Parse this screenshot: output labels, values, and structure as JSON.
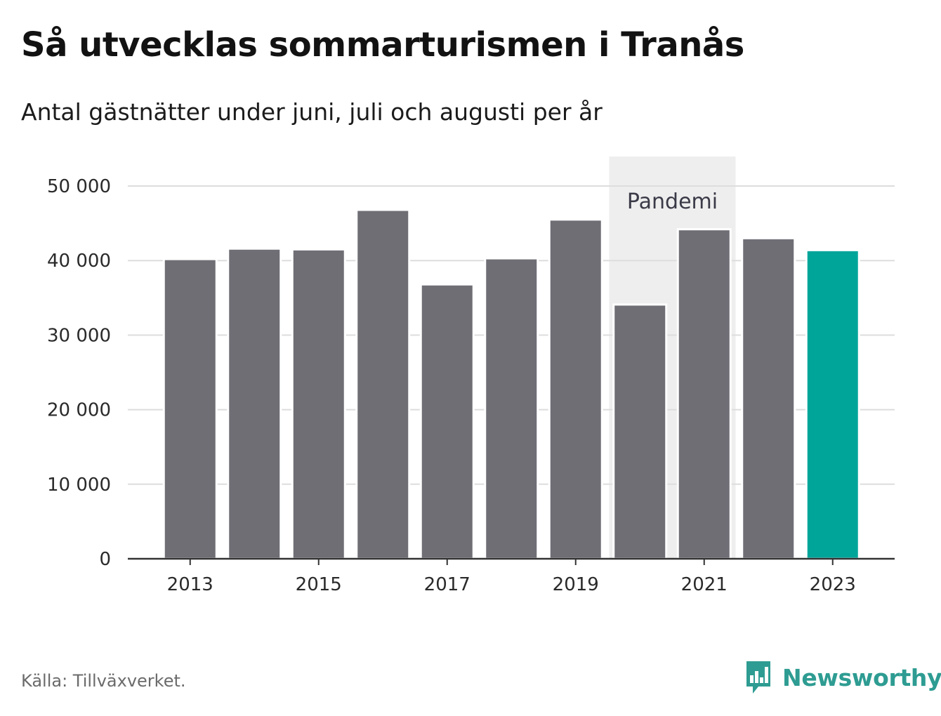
{
  "header": {
    "title": "Så utvecklas sommarturismen i Tranås",
    "subtitle": "Antal gästnätter under juni, juli och augusti per år"
  },
  "footer": {
    "source": "Källa: Tillväxverket.",
    "brand": "Newsworthy",
    "brand_icon": "newsworthy-logo-icon"
  },
  "colors": {
    "bar_default": "#6f6e75",
    "bar_highlight": "#00a59a",
    "band_fill": "#eeeeee",
    "gridline": "#dddddd",
    "axis": "#333333",
    "brand": "#2e9c92"
  },
  "chart_data": {
    "type": "bar",
    "title": "Så utvecklas sommarturismen i Tranås",
    "subtitle": "Antal gästnätter under juni, juli och augusti per år",
    "xlabel": "",
    "ylabel": "",
    "categories": [
      2013,
      2014,
      2015,
      2016,
      2017,
      2018,
      2019,
      2020,
      2021,
      2022,
      2023
    ],
    "values": [
      40200,
      41600,
      41500,
      46800,
      36800,
      40300,
      45500,
      34100,
      44200,
      43000,
      41400
    ],
    "highlight": [
      2023
    ],
    "ylim": [
      0,
      50000
    ],
    "yticks": [
      0,
      10000,
      20000,
      30000,
      40000,
      50000
    ],
    "ytick_labels": [
      "0",
      "10 000",
      "20 000",
      "30 000",
      "40 000",
      "50 000"
    ],
    "xticks": [
      2013,
      2015,
      2017,
      2019,
      2021,
      2023
    ],
    "xtick_labels": [
      "2013",
      "2015",
      "2017",
      "2019",
      "2021",
      "2023"
    ],
    "grid": true,
    "legend": "none",
    "annotations": [
      {
        "type": "band",
        "x_from": 2020,
        "x_to": 2021,
        "label": "Pandemi"
      }
    ]
  }
}
